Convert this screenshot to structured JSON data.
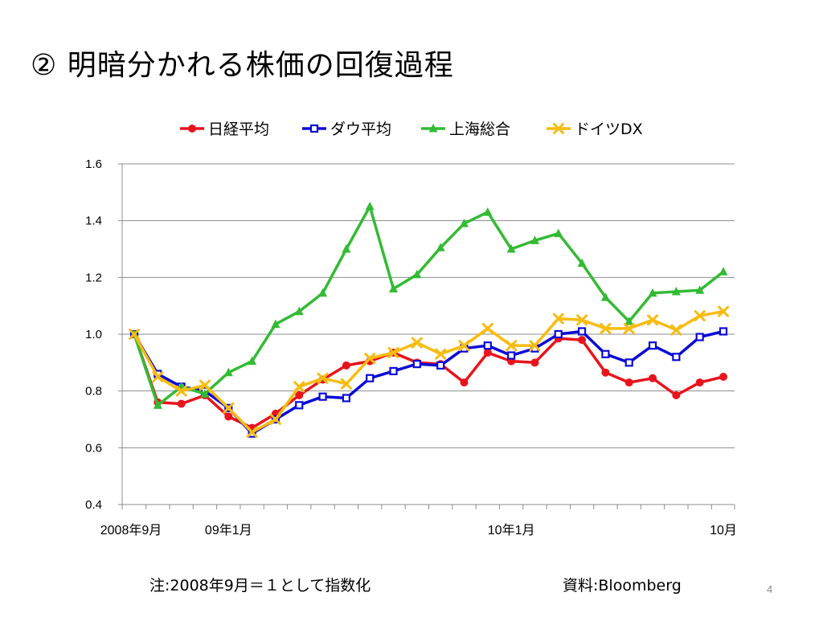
{
  "title": "② 明暗分かれる株価の回復過程",
  "footnote": "注:2008年9月＝１として指数化",
  "source": "資料:Bloomberg",
  "page_number": "4",
  "chart_data": {
    "type": "line",
    "title": "",
    "xlabel": "",
    "ylabel": "",
    "ylim": [
      0.4,
      1.6
    ],
    "yticks": [
      "0.4",
      "0.6",
      "0.8",
      "1.0",
      "1.2",
      "1.4",
      "1.6"
    ],
    "grid": true,
    "legend_position": "top",
    "x": [
      "2008-09",
      "2008-10",
      "2008-11",
      "2008-12",
      "2009-01",
      "2009-02",
      "2009-03",
      "2009-04",
      "2009-05",
      "2009-06",
      "2009-07",
      "2009-08",
      "2009-09",
      "2009-10",
      "2009-11",
      "2009-12",
      "2010-01",
      "2010-02",
      "2010-03",
      "2010-04",
      "2010-05",
      "2010-06",
      "2010-07",
      "2010-08",
      "2010-09",
      "2010-10"
    ],
    "xtick_labels": [
      {
        "index": 0,
        "label": "2008年9月"
      },
      {
        "index": 4,
        "label": "09年1月"
      },
      {
        "index": 16,
        "label": "10年1月"
      },
      {
        "index": 25,
        "label": "10月"
      }
    ],
    "series": [
      {
        "name": "日経平均",
        "color": "#e8141c",
        "marker": "circle",
        "values": [
          1.0,
          0.76,
          0.755,
          0.785,
          0.71,
          0.67,
          0.72,
          0.785,
          0.84,
          0.89,
          0.905,
          0.935,
          0.9,
          0.895,
          0.83,
          0.935,
          0.905,
          0.9,
          0.985,
          0.98,
          0.865,
          0.83,
          0.845,
          0.785,
          0.83,
          0.85
        ]
      },
      {
        "name": "ダウ平均",
        "color": "#0a0ad6",
        "marker": "square",
        "values": [
          1.0,
          0.86,
          0.815,
          0.8,
          0.74,
          0.65,
          0.7,
          0.75,
          0.78,
          0.775,
          0.845,
          0.87,
          0.895,
          0.89,
          0.95,
          0.96,
          0.925,
          0.95,
          1.0,
          1.01,
          0.93,
          0.9,
          0.96,
          0.92,
          0.99,
          1.01
        ]
      },
      {
        "name": "上海総合",
        "color": "#33bb33",
        "marker": "triangle",
        "values": [
          1.0,
          0.75,
          0.815,
          0.79,
          0.865,
          0.905,
          1.035,
          1.08,
          1.145,
          1.3,
          1.45,
          1.16,
          1.21,
          1.305,
          1.39,
          1.43,
          1.3,
          1.33,
          1.355,
          1.25,
          1.13,
          1.045,
          1.145,
          1.15,
          1.155,
          1.22
        ]
      },
      {
        "name": "ドイツDX",
        "color": "#f8bb10",
        "marker": "x",
        "values": [
          1.0,
          0.85,
          0.8,
          0.82,
          0.74,
          0.655,
          0.7,
          0.815,
          0.845,
          0.825,
          0.915,
          0.935,
          0.97,
          0.93,
          0.96,
          1.02,
          0.96,
          0.96,
          1.055,
          1.05,
          1.02,
          1.02,
          1.05,
          1.015,
          1.065,
          1.08
        ]
      }
    ]
  }
}
